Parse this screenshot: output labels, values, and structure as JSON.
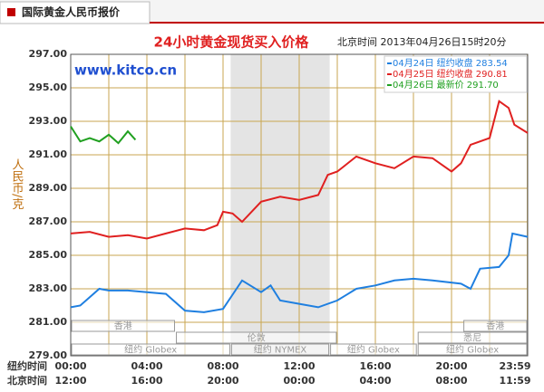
{
  "header": {
    "title": "国际黄金人民币报价"
  },
  "chart_data": {
    "type": "line",
    "title": "24小时黄金现货买入价格",
    "subtitle": "北京时间  2013年04月26日15时20分",
    "watermark": "www.kitco.cn",
    "y_label": "人民币/克",
    "x_label": "纽约时间",
    "x2_label": "北京时间",
    "xlim": [
      0,
      24
    ],
    "xticks": [
      {
        "value": 0,
        "label": "00:00"
      },
      {
        "value": 4,
        "label": "04:00"
      },
      {
        "value": 8,
        "label": "08:00"
      },
      {
        "value": 12,
        "label": "12:00"
      },
      {
        "value": 16,
        "label": "16:00"
      },
      {
        "value": 20,
        "label": "20:00"
      },
      {
        "value": 23.98,
        "label": "23:59"
      }
    ],
    "x2ticks": [
      {
        "value": 0,
        "label": "12:00"
      },
      {
        "value": 4,
        "label": "16:00"
      },
      {
        "value": 8,
        "label": "20:00"
      },
      {
        "value": 12,
        "label": "00:00"
      },
      {
        "value": 16,
        "label": "04:00"
      },
      {
        "value": 20,
        "label": "08:00"
      },
      {
        "value": 23.98,
        "label": "11:59"
      }
    ],
    "xminor": [
      2,
      6,
      10,
      14,
      18,
      22
    ],
    "ylim": [
      279,
      297
    ],
    "yticks": [
      {
        "value": 279,
        "label": "279.00"
      },
      {
        "value": 281,
        "label": "281.00"
      },
      {
        "value": 283,
        "label": "283.00"
      },
      {
        "value": 285,
        "label": "285.00"
      },
      {
        "value": 287,
        "label": "287.00"
      },
      {
        "value": 289,
        "label": "289.00"
      },
      {
        "value": 291,
        "label": "291.00"
      },
      {
        "value": 293,
        "label": "293.00"
      },
      {
        "value": 295,
        "label": "295.00"
      },
      {
        "value": 297,
        "label": "297.00"
      }
    ],
    "grid": true,
    "shaded_range": [
      8.4,
      13.6
    ],
    "sessions": [
      {
        "name": "香港",
        "start": 0,
        "end": 5.5,
        "row": 0
      },
      {
        "name": "香港",
        "start": 20.6,
        "end": 24,
        "row": 0
      },
      {
        "name": "伦敦",
        "start": 5.5,
        "end": 14,
        "row": 1
      },
      {
        "name": "悉尼",
        "start": 18.2,
        "end": 24,
        "row": 1
      },
      {
        "name": "纽约 Globex",
        "start": 0,
        "end": 8.4,
        "row": 2
      },
      {
        "name": "纽约 NYMEX",
        "start": 8.4,
        "end": 13.6,
        "row": 2
      },
      {
        "name": "纽约 Globex",
        "start": 13.6,
        "end": 18.2,
        "row": 2
      },
      {
        "name": "纽约 Globex",
        "start": 18.2,
        "end": 24,
        "row": 2
      }
    ],
    "series": [
      {
        "name": "04月24日  纽约收盘  283.54",
        "color": "#1f7fe0",
        "x": [
          0,
          0.5,
          1,
          1.5,
          2,
          3,
          4,
          5,
          6,
          7,
          8,
          9,
          10,
          10.5,
          11,
          12,
          13,
          14,
          15,
          16,
          17,
          18,
          19,
          20.5,
          21,
          21.5,
          22.5,
          23,
          23.2,
          24
        ],
        "values": [
          281.9,
          282.0,
          282.5,
          283.0,
          282.9,
          282.9,
          282.8,
          282.7,
          281.7,
          281.6,
          281.8,
          283.5,
          282.8,
          283.2,
          282.3,
          282.1,
          281.9,
          282.3,
          283.0,
          283.2,
          283.5,
          283.6,
          283.5,
          283.3,
          283.0,
          284.2,
          284.3,
          285.0,
          286.3,
          286.1
        ]
      },
      {
        "name": "04月25日  纽约收盘  290.81",
        "color": "#e02020",
        "x": [
          0,
          1,
          2,
          3,
          4,
          5,
          6,
          7,
          7.7,
          8,
          8.5,
          9,
          9.5,
          10,
          11,
          12,
          13,
          13.5,
          14,
          15,
          16,
          17,
          18,
          19,
          20,
          20.5,
          21,
          22,
          22.5,
          23,
          23.3,
          24
        ],
        "values": [
          286.3,
          286.4,
          286.1,
          286.2,
          286.0,
          286.3,
          286.6,
          286.5,
          286.8,
          287.6,
          287.5,
          287.0,
          287.6,
          288.2,
          288.5,
          288.3,
          288.6,
          289.8,
          290.0,
          290.9,
          290.5,
          290.2,
          290.9,
          290.8,
          290.0,
          290.5,
          291.6,
          292.0,
          294.2,
          293.8,
          292.8,
          292.3
        ]
      },
      {
        "name": "04月26日  最新价  291.70",
        "color": "#20a020",
        "x": [
          0,
          0.5,
          1,
          1.5,
          2,
          2.5,
          3,
          3.4
        ],
        "values": [
          292.7,
          291.8,
          292.0,
          291.8,
          292.2,
          291.7,
          292.4,
          291.9
        ]
      }
    ]
  }
}
